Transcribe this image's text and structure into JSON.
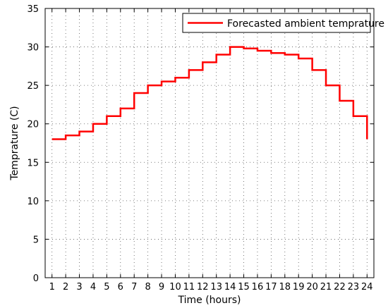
{
  "chart_data": {
    "type": "line",
    "step": true,
    "title": "",
    "xlabel": "Time (hours)",
    "ylabel": "Temprature (C)",
    "xlim": [
      0.5,
      24.5
    ],
    "ylim": [
      0,
      35
    ],
    "xticks": [
      1,
      2,
      3,
      4,
      5,
      6,
      7,
      8,
      9,
      10,
      11,
      12,
      13,
      14,
      15,
      16,
      17,
      18,
      19,
      20,
      21,
      22,
      23,
      24
    ],
    "yticks": [
      0,
      5,
      10,
      15,
      20,
      25,
      30,
      35
    ],
    "grid": true,
    "legend_position": "top-right",
    "series": [
      {
        "name": "Forecasted ambient temprature",
        "color": "#ff0000",
        "x": [
          1,
          2,
          3,
          4,
          5,
          6,
          7,
          8,
          9,
          10,
          11,
          12,
          13,
          14,
          15,
          16,
          17,
          18,
          19,
          20,
          21,
          22,
          23,
          24
        ],
        "values": [
          18,
          18.5,
          19,
          20,
          21,
          22,
          24,
          25,
          25.5,
          26,
          27,
          28,
          29,
          30,
          29.8,
          29.5,
          29.2,
          29,
          28.5,
          27,
          25,
          23,
          21,
          18
        ]
      }
    ]
  }
}
